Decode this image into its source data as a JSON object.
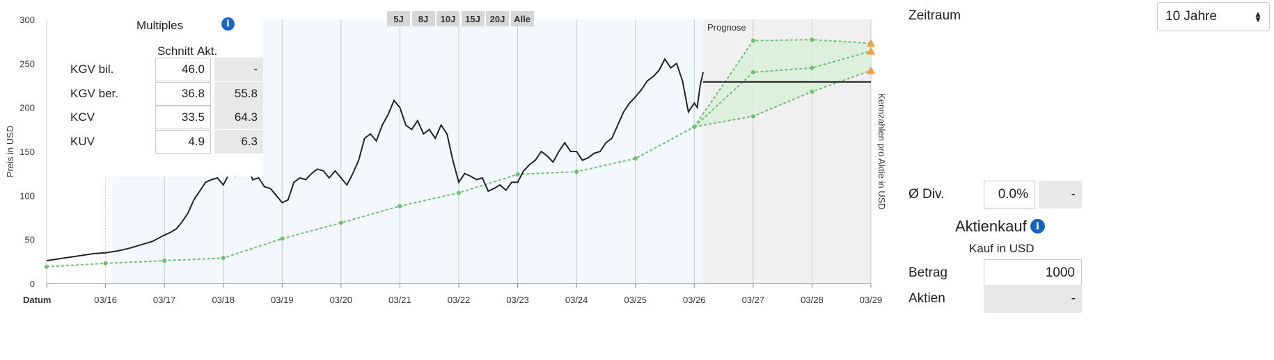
{
  "chart_data": {
    "type": "line",
    "ylabel": "Preis in USD",
    "y2label": "Kennzahlen pro Aktie in USD",
    "xlabel": "Datum",
    "ylim": [
      0,
      300
    ],
    "yticks": [
      0,
      50,
      100,
      150,
      200,
      250,
      300
    ],
    "xlim": [
      2015.0,
      2029.0
    ],
    "xticks": [
      {
        "x": 2016,
        "label": "03/16"
      },
      {
        "x": 2017,
        "label": "03/17"
      },
      {
        "x": 2018,
        "label": "03/18"
      },
      {
        "x": 2019,
        "label": "03/19"
      },
      {
        "x": 2020,
        "label": "03/20"
      },
      {
        "x": 2021,
        "label": "03/21"
      },
      {
        "x": 2022,
        "label": "03/22"
      },
      {
        "x": 2023,
        "label": "03/23"
      },
      {
        "x": 2024,
        "label": "03/24"
      },
      {
        "x": 2025,
        "label": "03/25"
      },
      {
        "x": 2026,
        "label": "03/26"
      },
      {
        "x": 2027,
        "label": "03/27"
      },
      {
        "x": 2028,
        "label": "03/28"
      },
      {
        "x": 2029,
        "label": "03/29"
      }
    ],
    "forecast_label": "Prognose",
    "forecast_start": 2026.15,
    "price_series": [
      [
        2015.0,
        26
      ],
      [
        2015.2,
        28
      ],
      [
        2015.4,
        30
      ],
      [
        2015.6,
        32
      ],
      [
        2015.8,
        34
      ],
      [
        2016.0,
        35
      ],
      [
        2016.2,
        37
      ],
      [
        2016.4,
        40
      ],
      [
        2016.6,
        44
      ],
      [
        2016.8,
        48
      ],
      [
        2017.0,
        55
      ],
      [
        2017.1,
        58
      ],
      [
        2017.2,
        62
      ],
      [
        2017.3,
        70
      ],
      [
        2017.4,
        80
      ],
      [
        2017.5,
        95
      ],
      [
        2017.6,
        105
      ],
      [
        2017.7,
        115
      ],
      [
        2017.8,
        118
      ],
      [
        2017.9,
        120
      ],
      [
        2018.0,
        112
      ],
      [
        2018.1,
        125
      ],
      [
        2018.2,
        122
      ],
      [
        2018.3,
        130
      ],
      [
        2018.4,
        135
      ],
      [
        2018.5,
        118
      ],
      [
        2018.6,
        120
      ],
      [
        2018.7,
        110
      ],
      [
        2018.8,
        108
      ],
      [
        2018.9,
        100
      ],
      [
        2019.0,
        92
      ],
      [
        2019.1,
        95
      ],
      [
        2019.2,
        115
      ],
      [
        2019.3,
        120
      ],
      [
        2019.4,
        118
      ],
      [
        2019.5,
        125
      ],
      [
        2019.6,
        130
      ],
      [
        2019.7,
        128
      ],
      [
        2019.8,
        120
      ],
      [
        2019.9,
        128
      ],
      [
        2020.0,
        120
      ],
      [
        2020.1,
        112
      ],
      [
        2020.2,
        125
      ],
      [
        2020.3,
        140
      ],
      [
        2020.4,
        165
      ],
      [
        2020.5,
        170
      ],
      [
        2020.6,
        162
      ],
      [
        2020.7,
        180
      ],
      [
        2020.8,
        192
      ],
      [
        2020.9,
        208
      ],
      [
        2021.0,
        200
      ],
      [
        2021.1,
        180
      ],
      [
        2021.2,
        175
      ],
      [
        2021.3,
        185
      ],
      [
        2021.4,
        170
      ],
      [
        2021.5,
        175
      ],
      [
        2021.6,
        165
      ],
      [
        2021.7,
        180
      ],
      [
        2021.8,
        170
      ],
      [
        2021.9,
        140
      ],
      [
        2022.0,
        115
      ],
      [
        2022.1,
        125
      ],
      [
        2022.2,
        122
      ],
      [
        2022.3,
        118
      ],
      [
        2022.4,
        120
      ],
      [
        2022.5,
        105
      ],
      [
        2022.6,
        108
      ],
      [
        2022.7,
        112
      ],
      [
        2022.8,
        106
      ],
      [
        2022.9,
        115
      ],
      [
        2023.0,
        115
      ],
      [
        2023.1,
        128
      ],
      [
        2023.2,
        135
      ],
      [
        2023.3,
        140
      ],
      [
        2023.4,
        150
      ],
      [
        2023.5,
        145
      ],
      [
        2023.6,
        138
      ],
      [
        2023.7,
        150
      ],
      [
        2023.8,
        160
      ],
      [
        2023.9,
        150
      ],
      [
        2024.0,
        150
      ],
      [
        2024.1,
        140
      ],
      [
        2024.2,
        143
      ],
      [
        2024.3,
        148
      ],
      [
        2024.4,
        150
      ],
      [
        2024.5,
        160
      ],
      [
        2024.6,
        165
      ],
      [
        2024.7,
        180
      ],
      [
        2024.8,
        195
      ],
      [
        2024.9,
        205
      ],
      [
        2025.0,
        212
      ],
      [
        2025.1,
        220
      ],
      [
        2025.2,
        230
      ],
      [
        2025.3,
        235
      ],
      [
        2025.4,
        242
      ],
      [
        2025.5,
        255
      ],
      [
        2025.6,
        245
      ],
      [
        2025.7,
        250
      ],
      [
        2025.8,
        230
      ],
      [
        2025.9,
        195
      ],
      [
        2026.0,
        205
      ],
      [
        2026.05,
        200
      ],
      [
        2026.1,
        225
      ],
      [
        2026.15,
        240
      ]
    ],
    "current_price_line": [
      [
        2026.15,
        229
      ],
      [
        2029.0,
        229
      ]
    ],
    "fair_value_series": [
      [
        2015.0,
        19
      ],
      [
        2016.0,
        23
      ],
      [
        2017.0,
        26
      ],
      [
        2018.0,
        29
      ],
      [
        2019.0,
        51
      ],
      [
        2020.0,
        69
      ],
      [
        2021.0,
        88
      ],
      [
        2022.0,
        103
      ],
      [
        2023.0,
        124
      ],
      [
        2024.0,
        127
      ],
      [
        2025.0,
        142
      ],
      [
        2026.0,
        178
      ]
    ],
    "forecast_series": [
      {
        "values": [
          [
            2026.0,
            178
          ],
          [
            2027.0,
            276
          ],
          [
            2028.0,
            277
          ],
          [
            2029.0,
            273
          ]
        ]
      },
      {
        "values": [
          [
            2026.0,
            178
          ],
          [
            2027.0,
            240
          ],
          [
            2028.0,
            245
          ],
          [
            2029.0,
            264
          ]
        ]
      },
      {
        "values": [
          [
            2026.0,
            178
          ],
          [
            2027.0,
            190
          ],
          [
            2028.0,
            218
          ],
          [
            2029.0,
            242
          ]
        ]
      }
    ],
    "colors": {
      "price": "#222222",
      "fair_value": "#6cc070",
      "forecast_fill": "#d8efd8",
      "marker": "#f0a040"
    }
  },
  "range_buttons": [
    "5J",
    "8J",
    "10J",
    "15J",
    "20J",
    "Alle"
  ],
  "multiples": {
    "title": "Multiples",
    "col_schnitt": "Schnitt",
    "col_akt": "Akt.",
    "rows": [
      {
        "label": "KGV bil.",
        "schnitt": "46.0",
        "akt": "-"
      },
      {
        "label": "KGV ber.",
        "schnitt": "36.8",
        "akt": "55.8"
      },
      {
        "label": "KCV",
        "schnitt": "33.5",
        "akt": "64.3"
      },
      {
        "label": "KUV",
        "schnitt": "4.9",
        "akt": "6.3"
      }
    ]
  },
  "right_panel": {
    "zeitraum_label": "Zeitraum",
    "zeitraum_value": "10 Jahre",
    "div_label": "Ø Div.",
    "div_value": "0.0%",
    "div_akt": "-",
    "aktienkauf_title": "Aktienkauf",
    "kauf_subtitle": "Kauf in USD",
    "betrag_label": "Betrag",
    "betrag_value": "1000",
    "aktien_label": "Aktien",
    "aktien_value": "-"
  }
}
